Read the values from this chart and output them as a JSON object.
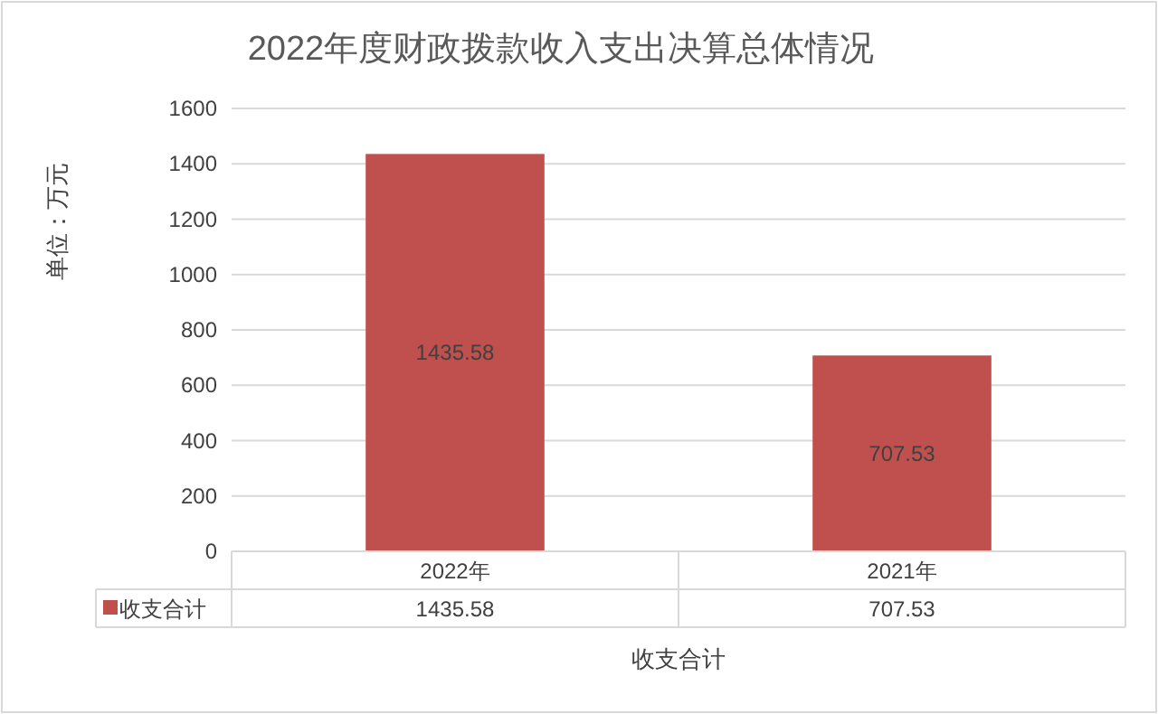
{
  "chart_data": {
    "type": "bar",
    "title": "2022年度财政拨款收入支出决算总体情况",
    "ylabel": "单位：万元",
    "xlabel": "收支合计",
    "categories": [
      "2022年",
      "2021年"
    ],
    "series": [
      {
        "name": "收支合计",
        "color": "#c0504d",
        "values": [
          1435.58,
          707.53
        ],
        "value_labels": [
          "1435.58",
          "707.53"
        ]
      }
    ],
    "ylim": [
      0,
      1600
    ],
    "yticks": [
      0,
      200,
      400,
      600,
      800,
      1000,
      1200,
      1400,
      1600
    ],
    "grid": "y",
    "annotations": [
      "1435.58",
      "707.53"
    ],
    "legend": "bottom"
  }
}
